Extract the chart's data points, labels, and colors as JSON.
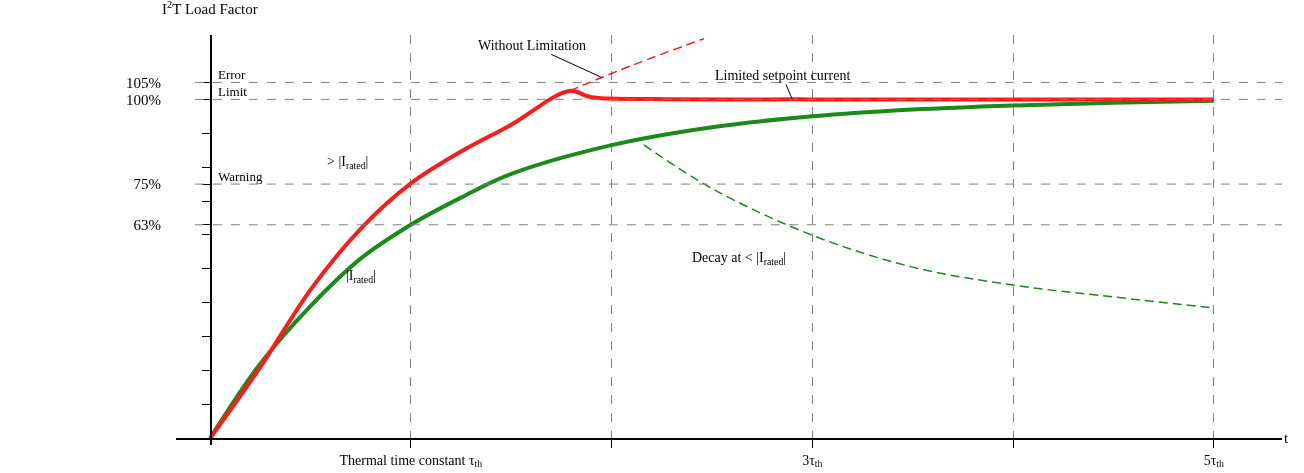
{
  "chart_data": {
    "type": "line",
    "ylabel": "I$^{2}$T Load Factor",
    "xlabel": "t",
    "xlim": [
      -0.17,
      5.34
    ],
    "ylim": [
      -2,
      119
    ],
    "xticks": [
      {
        "value": 1,
        "label": "Thermal time constant τ$_{th}$"
      },
      {
        "value": 2,
        "label": null
      },
      {
        "value": 3,
        "label": "3τ$_{th}$"
      },
      {
        "value": 4,
        "label": null
      },
      {
        "value": 5,
        "label": "5τ$_{th}$"
      }
    ],
    "yticks": [
      {
        "value": 10,
        "label": null
      },
      {
        "value": 20,
        "label": null
      },
      {
        "value": 30,
        "label": null
      },
      {
        "value": 40,
        "label": null
      },
      {
        "value": 50,
        "label": null
      },
      {
        "value": 60,
        "label": null
      },
      {
        "value": 63,
        "label": "63%"
      },
      {
        "value": 70,
        "label": null
      },
      {
        "value": 75,
        "label": "75%"
      },
      {
        "value": 80,
        "label": null
      },
      {
        "value": 90,
        "label": null
      },
      {
        "value": 100,
        "label": "100%"
      },
      {
        "value": 105,
        "label": "105%"
      }
    ],
    "grid": "x",
    "marker": "none",
    "series": [
      {
        "color": "#1a8a1a",
        "line_style": "solid",
        "x": [
          0,
          0.25,
          0.5,
          0.75,
          1,
          1.25,
          1.5,
          2,
          2.5,
          3,
          3.5,
          4,
          4.5,
          5
        ],
        "values": [
          0,
          22,
          39,
          53,
          63,
          71,
          78,
          86.5,
          91.8,
          95,
          97,
          98.2,
          99,
          99.6
        ]
      },
      {
        "color": "#ff1a1a",
        "line_style": "solid",
        "x": [
          0,
          0.25,
          0.5,
          0.75,
          1,
          1.25,
          1.5,
          1.79,
          1.9,
          2.2,
          3,
          4,
          5
        ],
        "values": [
          0,
          21,
          43.8,
          61.8,
          75.2,
          84.6,
          92.5,
          102.5,
          100.6,
          100.1,
          100,
          100,
          100
        ]
      },
      {
        "color": "#ff1a1a",
        "line_style": "dashed",
        "x": [
          1.79,
          2.1,
          2.46
        ],
        "values": [
          102.5,
          110,
          117.9
        ]
      },
      {
        "color": "#1a8a1a",
        "line_style": "dashed",
        "x": [
          2.16,
          2.5,
          3,
          3.5,
          4,
          4.5,
          4.99
        ],
        "values": [
          86.6,
          73.7,
          59.9,
          50.5,
          45.2,
          41.7,
          38.5
        ]
      }
    ],
    "ref_lines": [
      {
        "axis": "y",
        "value": 105,
        "label": "Error",
        "color": "#808080",
        "line_style": "dashed"
      },
      {
        "axis": "y",
        "value": 100,
        "label": "Limit",
        "color": "#808080",
        "line_style": "dashed"
      },
      {
        "axis": "y",
        "value": 75,
        "label": "Warning",
        "color": "#808080",
        "line_style": "dashed"
      },
      {
        "axis": "y",
        "value": 63,
        "label": null,
        "color": "#808080",
        "line_style": "dashed"
      }
    ],
    "annotations": [
      {
        "text": "Without Limitation",
        "x": 1.95,
        "y": 106.5
      },
      {
        "text": "Limited setpoint current",
        "x": 2.9,
        "y": 100
      },
      "> |I$_{rated}$|",
      "|I$_{rated}$|",
      "Decay at < |I$_{rated}$|"
    ]
  }
}
